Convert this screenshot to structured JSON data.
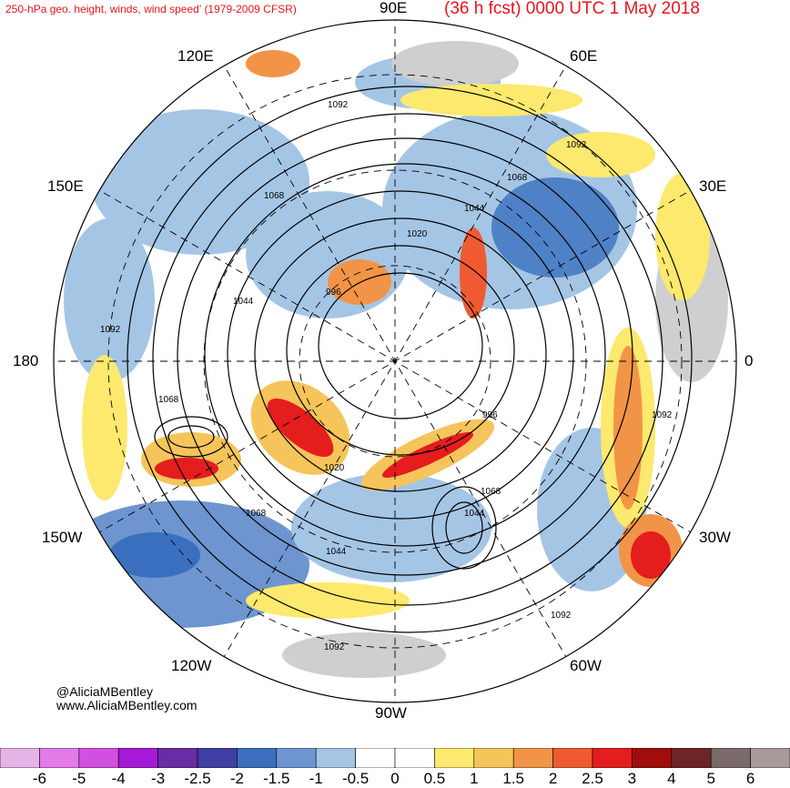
{
  "header": {
    "left": "250-hPa geo. height, winds, wind speed' (1979-2009 CFSR)",
    "right": "(36 h fcst) 0000 UTC 1 May 2018"
  },
  "longitude_labels": {
    "top": "90E",
    "upper_right": "60E",
    "right_upper": "30E",
    "right": "0",
    "lower_right": "30W",
    "bottom_right": "60W",
    "bottom": "90W",
    "bottom_left": "120W",
    "lower_left": "150W",
    "left": "180",
    "upper_left": "150E",
    "top_left": "120E"
  },
  "credits": {
    "handle": "@AliciaMBentley",
    "website": "www.AliciaMBentley.com"
  },
  "contour_labels": [
    "1092",
    "1092",
    "1068",
    "1068",
    "1044",
    "1020",
    "996",
    "1044",
    "1092",
    "1068",
    "996",
    "1020",
    "1068",
    "1044",
    "1068",
    "1044",
    "1092",
    "1092",
    "1092"
  ],
  "colorbar": {
    "labels": [
      "-6",
      "-5",
      "-4",
      "-3",
      "-2.5",
      "-2",
      "-1.5",
      "-1",
      "-0.5",
      "0",
      "0.5",
      "1",
      "1.5",
      "2",
      "2.5",
      "3",
      "4",
      "5",
      "6"
    ],
    "colors": [
      "#e6b4e6",
      "#e37ce6",
      "#d150e0",
      "#a41ad6",
      "#6a2ca4",
      "#3f3ea3",
      "#3a6fbf",
      "#6e95cf",
      "#a5c5e5",
      "#ffffff",
      "#ffffff",
      "#fde96e",
      "#f5c45a",
      "#f29447",
      "#f05a32",
      "#e41d1d",
      "#a10c0c",
      "#6e2525",
      "#7a6a6a",
      "#a89a9a"
    ]
  }
}
